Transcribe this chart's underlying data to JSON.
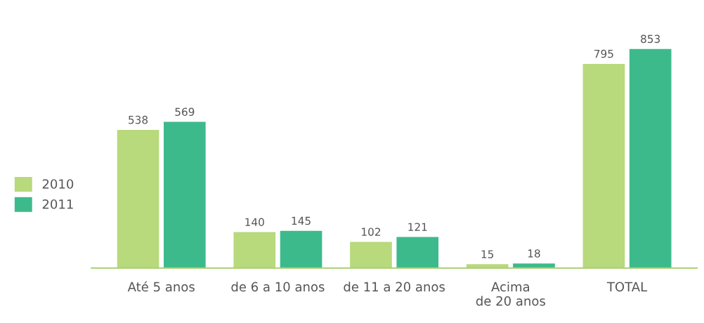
{
  "chart_data": {
    "type": "bar",
    "categories": [
      "Até 5 anos",
      "de 6 a 10 anos",
      "de 11 a 20 anos",
      "Acima\nde 20 anos",
      "TOTAL"
    ],
    "series": [
      {
        "name": "2010",
        "color": "#b8d97c",
        "values": [
          538,
          140,
          102,
          15,
          795
        ]
      },
      {
        "name": "2011",
        "color": "#3dba8c",
        "values": [
          569,
          145,
          121,
          18,
          853
        ]
      }
    ],
    "data_labels": true,
    "legend": "left",
    "grid": false
  }
}
